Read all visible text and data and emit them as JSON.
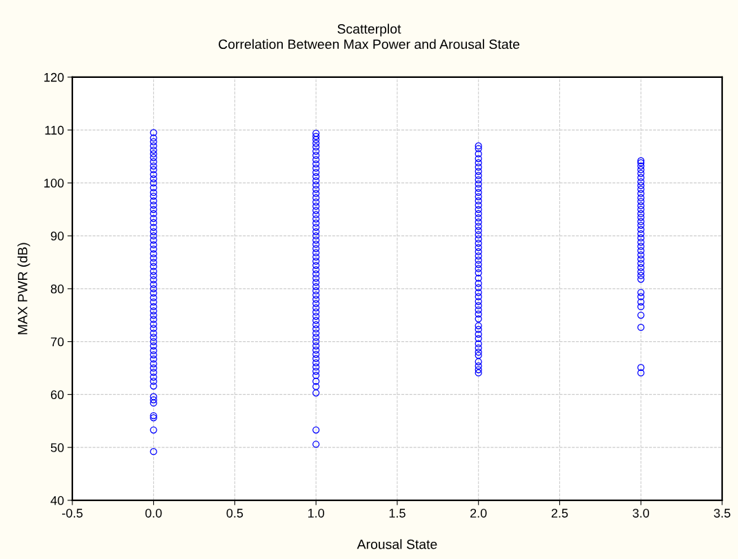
{
  "chart_data": {
    "type": "scatter",
    "title": "Scatterplot",
    "subtitle": "Correlation Between Max Power and Arousal State",
    "xlabel": "Arousal State",
    "ylabel": "MAX PWR (dB)",
    "xlim": [
      -0.5,
      3.5
    ],
    "xticks": [
      {
        "value": -0.5,
        "label": "-0.5"
      },
      {
        "value": 0,
        "label": "0.0"
      },
      {
        "value": 0.5,
        "label": "0.5"
      },
      {
        "value": 1,
        "label": "1.0"
      },
      {
        "value": 1.5,
        "label": "1.5"
      },
      {
        "value": 2,
        "label": "2.0"
      },
      {
        "value": 2.5,
        "label": "2.5"
      },
      {
        "value": 3,
        "label": "3.0"
      },
      {
        "value": 3.5,
        "label": "3.5"
      }
    ],
    "ylim": [
      40,
      120
    ],
    "yticks": [
      40,
      50,
      60,
      70,
      80,
      90,
      100,
      110,
      120
    ],
    "grid": true,
    "marker": "circle",
    "series": [
      {
        "color": "#0000ff",
        "x": [
          0,
          0,
          0,
          0,
          0,
          0,
          0,
          0,
          0,
          0,
          0,
          0,
          0,
          0,
          0,
          0,
          0,
          0,
          0,
          0,
          0,
          0,
          0,
          0,
          0,
          0,
          0,
          0,
          0,
          0,
          0,
          0,
          0,
          0,
          0,
          0,
          0,
          0,
          0,
          0,
          0,
          0,
          0,
          0,
          0,
          0,
          0,
          0,
          0,
          0,
          0,
          0,
          0,
          0,
          0,
          0,
          0,
          0,
          0,
          0,
          0,
          0,
          0,
          0,
          0,
          0
        ],
        "values": [
          109.5,
          108.5,
          107.8,
          107,
          106.2,
          105.5,
          104.8,
          104,
          103.2,
          102.5,
          101.6,
          100.8,
          100,
          99.1,
          98.2,
          97.5,
          96.6,
          95.8,
          95,
          94.2,
          93.3,
          92.5,
          91.6,
          90.8,
          90,
          89.2,
          88.3,
          87.5,
          86.6,
          85.8,
          85,
          84.2,
          83.3,
          82.5,
          81.7,
          80.8,
          80,
          79.2,
          78.3,
          77.5,
          76.6,
          75.8,
          75,
          74.2,
          73.3,
          72.5,
          71.6,
          70.8,
          70,
          69.2,
          68.3,
          67.5,
          66.7,
          65.8,
          65,
          64.2,
          63.3,
          62.5,
          61.6,
          59.6,
          59,
          58.4,
          56,
          55.6,
          53.3,
          49.2
        ]
      },
      {
        "color": "#0000ff",
        "x": [
          1,
          1,
          1,
          1,
          1,
          1,
          1,
          1,
          1,
          1,
          1,
          1,
          1,
          1,
          1,
          1,
          1,
          1,
          1,
          1,
          1,
          1,
          1,
          1,
          1,
          1,
          1,
          1,
          1,
          1,
          1,
          1,
          1,
          1,
          1,
          1,
          1,
          1,
          1,
          1,
          1,
          1,
          1,
          1,
          1,
          1,
          1,
          1,
          1,
          1,
          1,
          1,
          1,
          1,
          1,
          1,
          1,
          1,
          1,
          1,
          1,
          1,
          1,
          1
        ],
        "values": [
          109.4,
          108.8,
          108.2,
          107.5,
          106.8,
          106,
          105.2,
          104.4,
          103.6,
          102.8,
          102,
          101.2,
          100.4,
          99.6,
          98.8,
          98,
          97.2,
          96.4,
          95.6,
          94.8,
          94,
          93.2,
          92.4,
          91.6,
          90.8,
          90,
          89.2,
          88.4,
          87.6,
          86.8,
          86,
          85.2,
          84.4,
          83.6,
          82.8,
          82,
          81.2,
          80.4,
          79.6,
          78.8,
          78,
          77.2,
          76.4,
          75.6,
          74.8,
          74,
          73.2,
          72.4,
          71.6,
          70.8,
          70,
          69.2,
          68.4,
          67.6,
          66.8,
          66,
          65.2,
          64.4,
          63.6,
          62.5,
          61.5,
          60.3,
          53.3,
          50.6
        ]
      },
      {
        "color": "#0000ff",
        "x": [
          2,
          2,
          2,
          2,
          2,
          2,
          2,
          2,
          2,
          2,
          2,
          2,
          2,
          2,
          2,
          2,
          2,
          2,
          2,
          2,
          2,
          2,
          2,
          2,
          2,
          2,
          2,
          2,
          2,
          2,
          2,
          2,
          2,
          2,
          2,
          2,
          2,
          2,
          2,
          2,
          2,
          2,
          2,
          2,
          2,
          2,
          2,
          2,
          2,
          2,
          2,
          2,
          2
        ],
        "values": [
          107,
          106.5,
          105.5,
          104.6,
          103.8,
          103,
          102.2,
          101.4,
          100.6,
          99.8,
          99,
          98.2,
          97.4,
          96.6,
          95.8,
          95,
          94.2,
          93.4,
          92.6,
          91.8,
          91,
          90.2,
          89.4,
          88.6,
          87.8,
          87,
          86.2,
          85.4,
          84.6,
          83.8,
          83,
          82,
          81,
          80.2,
          79.3,
          78.5,
          77.6,
          76.8,
          76,
          75.2,
          74.3,
          73,
          72.3,
          71.4,
          70.6,
          69.6,
          68.8,
          68,
          67.4,
          66.2,
          65.4,
          64.7,
          64.1
        ]
      },
      {
        "color": "#0000ff",
        "x": [
          3,
          3,
          3,
          3,
          3,
          3,
          3,
          3,
          3,
          3,
          3,
          3,
          3,
          3,
          3,
          3,
          3,
          3,
          3,
          3,
          3,
          3,
          3,
          3,
          3,
          3,
          3,
          3,
          3,
          3,
          3,
          3,
          3,
          3,
          3,
          3,
          3,
          3,
          3
        ],
        "values": [
          104.2,
          103.8,
          103.2,
          102.5,
          101.8,
          101,
          100.2,
          99.5,
          98.8,
          98,
          97.2,
          96.5,
          95.7,
          95,
          94.2,
          93.5,
          92.7,
          92,
          91.2,
          90.4,
          89.6,
          88.8,
          88,
          87.2,
          86.4,
          85.6,
          84.8,
          84,
          83.2,
          82.5,
          81.8,
          79.3,
          78.5,
          77.5,
          76.6,
          75,
          72.7,
          65.1,
          64.1
        ]
      }
    ]
  }
}
